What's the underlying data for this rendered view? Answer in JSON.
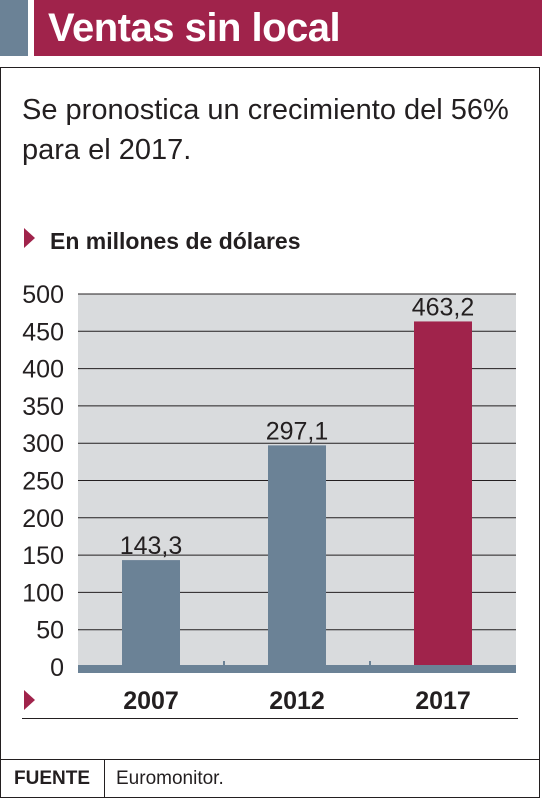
{
  "header": {
    "title": "Ventas sin local"
  },
  "subtitle": "Se pronostica un crecimiento del 56% para el 2017.",
  "unit_label": "En millones de dólares",
  "source": {
    "label": "FUENTE",
    "value": "Euromonitor."
  },
  "colors": {
    "accent": "#a0234b",
    "bar_default": "#6b8296",
    "bar_highlight": "#a0234b",
    "plot_background": "#d9dbdd",
    "axis": "#6b8296"
  },
  "chart_data": {
    "type": "bar",
    "title": "",
    "xlabel": "",
    "ylabel": "",
    "categories": [
      "2007",
      "2012",
      "2017"
    ],
    "values": [
      143.3,
      297.1,
      463.2
    ],
    "value_labels": [
      "143,3",
      "297,1",
      "463,2"
    ],
    "bar_colors": [
      "#6b8296",
      "#6b8296",
      "#a0234b"
    ],
    "ylim": [
      0,
      500
    ],
    "yticks": [
      0,
      50,
      100,
      150,
      200,
      250,
      300,
      350,
      400,
      450,
      500
    ],
    "grid": true,
    "legend": "none"
  }
}
